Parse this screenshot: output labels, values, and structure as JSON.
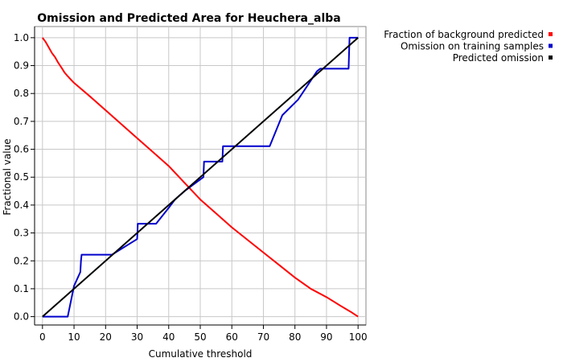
{
  "chart_data": {
    "type": "line",
    "title": "Omission and Predicted Area for Heuchera_alba",
    "xlabel": "Cumulative threshold",
    "ylabel": "Fractional value",
    "xlim": [
      -2.5,
      102.5
    ],
    "ylim": [
      -0.03,
      1.04
    ],
    "xticks": [
      0,
      10,
      20,
      30,
      40,
      50,
      60,
      70,
      80,
      90,
      100
    ],
    "yticks": [
      0.0,
      0.1,
      0.2,
      0.3,
      0.4,
      0.5,
      0.6,
      0.7,
      0.8,
      0.9,
      1.0
    ],
    "grid": true,
    "legend_position": "right-top",
    "series": [
      {
        "name": "Fraction of background predicted",
        "color": "#ff0000",
        "x": [
          0,
          1,
          2,
          3,
          4,
          5,
          6,
          7,
          8,
          9,
          10,
          15,
          20,
          25,
          30,
          35,
          40,
          45,
          50,
          55,
          60,
          65,
          70,
          75,
          80,
          85,
          90,
          95,
          98,
          100
        ],
        "y": [
          1.0,
          0.985,
          0.965,
          0.945,
          0.93,
          0.91,
          0.893,
          0.875,
          0.862,
          0.85,
          0.838,
          0.79,
          0.74,
          0.69,
          0.64,
          0.59,
          0.54,
          0.48,
          0.42,
          0.37,
          0.32,
          0.275,
          0.23,
          0.185,
          0.14,
          0.1,
          0.07,
          0.035,
          0.015,
          0.0
        ]
      },
      {
        "name": "Omission on training samples",
        "color": "#0000cc",
        "x": [
          0,
          8,
          10,
          12,
          12.2,
          12.4,
          22,
          30,
          30.2,
          36,
          40,
          42,
          45,
          51,
          51.2,
          57,
          57.2,
          72,
          76,
          81,
          87,
          88,
          97,
          97.3,
          99,
          100
        ],
        "y": [
          0.0,
          0.0,
          0.11,
          0.16,
          0.2,
          0.222,
          0.222,
          0.278,
          0.333,
          0.333,
          0.39,
          0.42,
          0.45,
          0.5,
          0.556,
          0.556,
          0.611,
          0.611,
          0.722,
          0.778,
          0.88,
          0.889,
          0.889,
          1.0,
          1.0,
          1.0
        ]
      },
      {
        "name": "Predicted omission",
        "color": "#000000",
        "x": [
          0,
          100
        ],
        "y": [
          0.0,
          1.0
        ]
      }
    ]
  }
}
